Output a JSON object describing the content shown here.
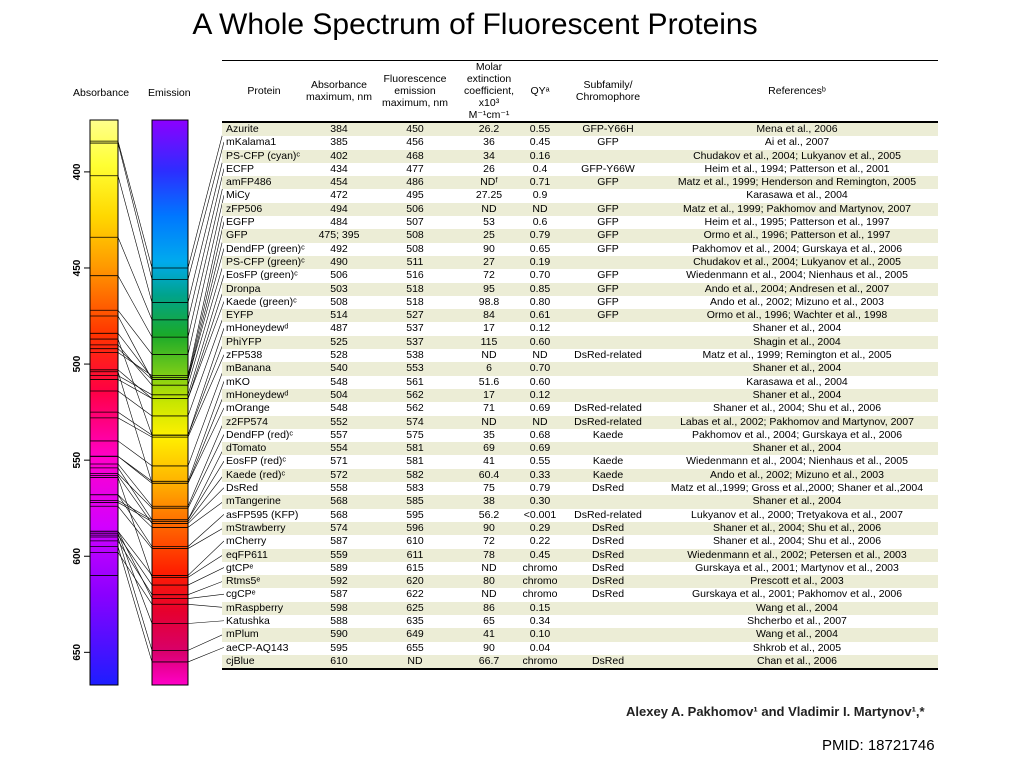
{
  "title": "A Whole Spectrum of Fluorescent Proteins",
  "spectrum": {
    "absorbance_label": "Absorbance",
    "emission_label": "Emission",
    "axis_ticks": [
      "400",
      "450",
      "500",
      "550",
      "600",
      "650"
    ]
  },
  "table": {
    "headers": {
      "protein": "Protein",
      "absorbance": "Absorbance maximum, nm",
      "emission": "Fluorescence emission maximum, nm",
      "extinction": "Molar extinction coefficient, x10³ M⁻¹cm⁻¹",
      "qy": "QYᵃ",
      "subfamily": "Subfamily/ Chromophore",
      "references": "Referencesᵇ"
    },
    "rows": [
      [
        "Azurite",
        "384",
        "450",
        "26.2",
        "0.55",
        "GFP-Y66H",
        "Mena et al., 2006"
      ],
      [
        "mKalama1",
        "385",
        "456",
        "36",
        "0.45",
        "GFP",
        "Ai et al., 2007"
      ],
      [
        "PS-CFP (cyan)ᶜ",
        "402",
        "468",
        "34",
        "0.16",
        "",
        "Chudakov et al., 2004; Lukyanov et al., 2005"
      ],
      [
        "ECFP",
        "434",
        "477",
        "26",
        "0.4",
        "GFP-Y66W",
        "Heim et al., 1994; Patterson et al., 2001"
      ],
      [
        "amFP486",
        "454",
        "486",
        "NDᶠ",
        "0.71",
        "GFP",
        "Matz et al., 1999; Henderson and Remington, 2005"
      ],
      [
        "MiCy",
        "472",
        "495",
        "27.25",
        "0.9",
        "",
        "Karasawa et al., 2004"
      ],
      [
        "zFP506",
        "494",
        "506",
        "ND",
        "ND",
        "GFP",
        "Matz et al., 1999; Pakhomov and Martynov, 2007"
      ],
      [
        "EGFP",
        "484",
        "507",
        "53",
        "0.6",
        "GFP",
        "Heim et al., 1995; Patterson et al., 1997"
      ],
      [
        "GFP",
        "475; 395",
        "508",
        "25",
        "0.79",
        "GFP",
        "Ormo et al., 1996; Patterson et al., 1997"
      ],
      [
        "DendFP (green)ᶜ",
        "492",
        "508",
        "90",
        "0.65",
        "GFP",
        "Pakhomov et al., 2004; Gurskaya et al., 2006"
      ],
      [
        "PS-CFP (green)ᶜ",
        "490",
        "511",
        "27",
        "0.19",
        "",
        "Chudakov et al., 2004; Lukyanov et al., 2005"
      ],
      [
        "EosFP (green)ᶜ",
        "506",
        "516",
        "72",
        "0.70",
        "GFP",
        "Wiedenmann et al., 2004; Nienhaus et al., 2005"
      ],
      [
        "Dronpa",
        "503",
        "518",
        "95",
        "0.85",
        "GFP",
        "Ando et al., 2004; Andresen et al., 2007"
      ],
      [
        "Kaede (green)ᶜ",
        "508",
        "518",
        "98.8",
        "0.80",
        "GFP",
        "Ando et al., 2002; Mizuno et al., 2003"
      ],
      [
        "EYFP",
        "514",
        "527",
        "84",
        "0.61",
        "GFP",
        "Ormo et al., 1996; Wachter et al., 1998"
      ],
      [
        "mHoneydewᵈ",
        "487",
        "537",
        "17",
        "0.12",
        "",
        "Shaner et al., 2004"
      ],
      [
        "PhiYFP",
        "525",
        "537",
        "115",
        "0.60",
        "",
        "Shagin et al., 2004"
      ],
      [
        "zFP538",
        "528",
        "538",
        "ND",
        "ND",
        "DsRed-related",
        "Matz et al., 1999; Remington et al., 2005"
      ],
      [
        "mBanana",
        "540",
        "553",
        "6",
        "0.70",
        "",
        "Shaner et al., 2004"
      ],
      [
        "mKO",
        "548",
        "561",
        "51.6",
        "0.60",
        "",
        "Karasawa et al., 2004"
      ],
      [
        "mHoneydewᵈ",
        "504",
        "562",
        "17",
        "0.12",
        "",
        "Shaner et al., 2004"
      ],
      [
        "mOrange",
        "548",
        "562",
        "71",
        "0.69",
        "DsRed-related",
        "Shaner et al., 2004; Shu et al., 2006"
      ],
      [
        "z2FP574",
        "552",
        "574",
        "ND",
        "ND",
        "DsRed-related",
        "Labas et al., 2002; Pakhomov and Martynov, 2007"
      ],
      [
        "DendFP (red)ᶜ",
        "557",
        "575",
        "35",
        "0.68",
        "Kaede",
        "Pakhomov et al., 2004; Gurskaya et al., 2006"
      ],
      [
        "dTomato",
        "554",
        "581",
        "69",
        "0.69",
        "",
        "Shaner et al., 2004"
      ],
      [
        "EosFP (red)ᶜ",
        "571",
        "581",
        "41",
        "0.55",
        "Kaede",
        "Wiedenmann et al., 2004; Nienhaus et al., 2005"
      ],
      [
        "Kaede (red)ᶜ",
        "572",
        "582",
        "60.4",
        "0.33",
        "Kaede",
        "Ando et al., 2002; Mizuno et al., 2003"
      ],
      [
        "DsRed",
        "558",
        "583",
        "75",
        "0.79",
        "DsRed",
        "Matz et al.,1999; Gross et al.,2000; Shaner et al.,2004"
      ],
      [
        "mTangerine",
        "568",
        "585",
        "38",
        "0.30",
        "",
        "Shaner et al., 2004"
      ],
      [
        "asFP595 (KFP)",
        "568",
        "595",
        "56.2",
        "<0.001",
        "DsRed-related",
        "Lukyanov et al., 2000; Tretyakova et al., 2007"
      ],
      [
        "mStrawberry",
        "574",
        "596",
        "90",
        "0.29",
        "DsRed",
        "Shaner et al., 2004; Shu et al., 2006"
      ],
      [
        "mCherry",
        "587",
        "610",
        "72",
        "0.22",
        "DsRed",
        "Shaner et al., 2004; Shu et al., 2006"
      ],
      [
        "eqFP611",
        "559",
        "611",
        "78",
        "0.45",
        "DsRed",
        "Wiedenmann et al., 2002; Petersen et al., 2003"
      ],
      [
        "gtCPᵉ",
        "589",
        "615",
        "ND",
        "chromo",
        "DsRed",
        "Gurskaya et al., 2001; Martynov et al., 2003"
      ],
      [
        "Rtms5ᵉ",
        "592",
        "620",
        "80",
        "chromo",
        "DsRed",
        "Prescott et al., 2003"
      ],
      [
        "cgCPᵉ",
        "587",
        "622",
        "ND",
        "chromo",
        "DsRed",
        "Gurskaya et al., 2001; Pakhomov et al., 2006"
      ],
      [
        "mRaspberry",
        "598",
        "625",
        "86",
        "0.15",
        "",
        "Wang et al., 2004"
      ],
      [
        "Katushka",
        "588",
        "635",
        "65",
        "0.34",
        "",
        "Shcherbo et al., 2007"
      ],
      [
        "mPlum",
        "590",
        "649",
        "41",
        "0.10",
        "",
        "Wang et al., 2004"
      ],
      [
        "aeCP-AQ143",
        "595",
        "655",
        "90",
        "0.04",
        "",
        "Shkrob et al., 2005"
      ],
      [
        "cjBlue",
        "610",
        "ND",
        "66.7",
        "chromo",
        "DsRed",
        "Chan et al., 2006"
      ]
    ]
  },
  "authors": "Alexey A. Pakhomov¹ and Vladimir I. Martynov¹,*",
  "pmid": "PMID: 18721746"
}
